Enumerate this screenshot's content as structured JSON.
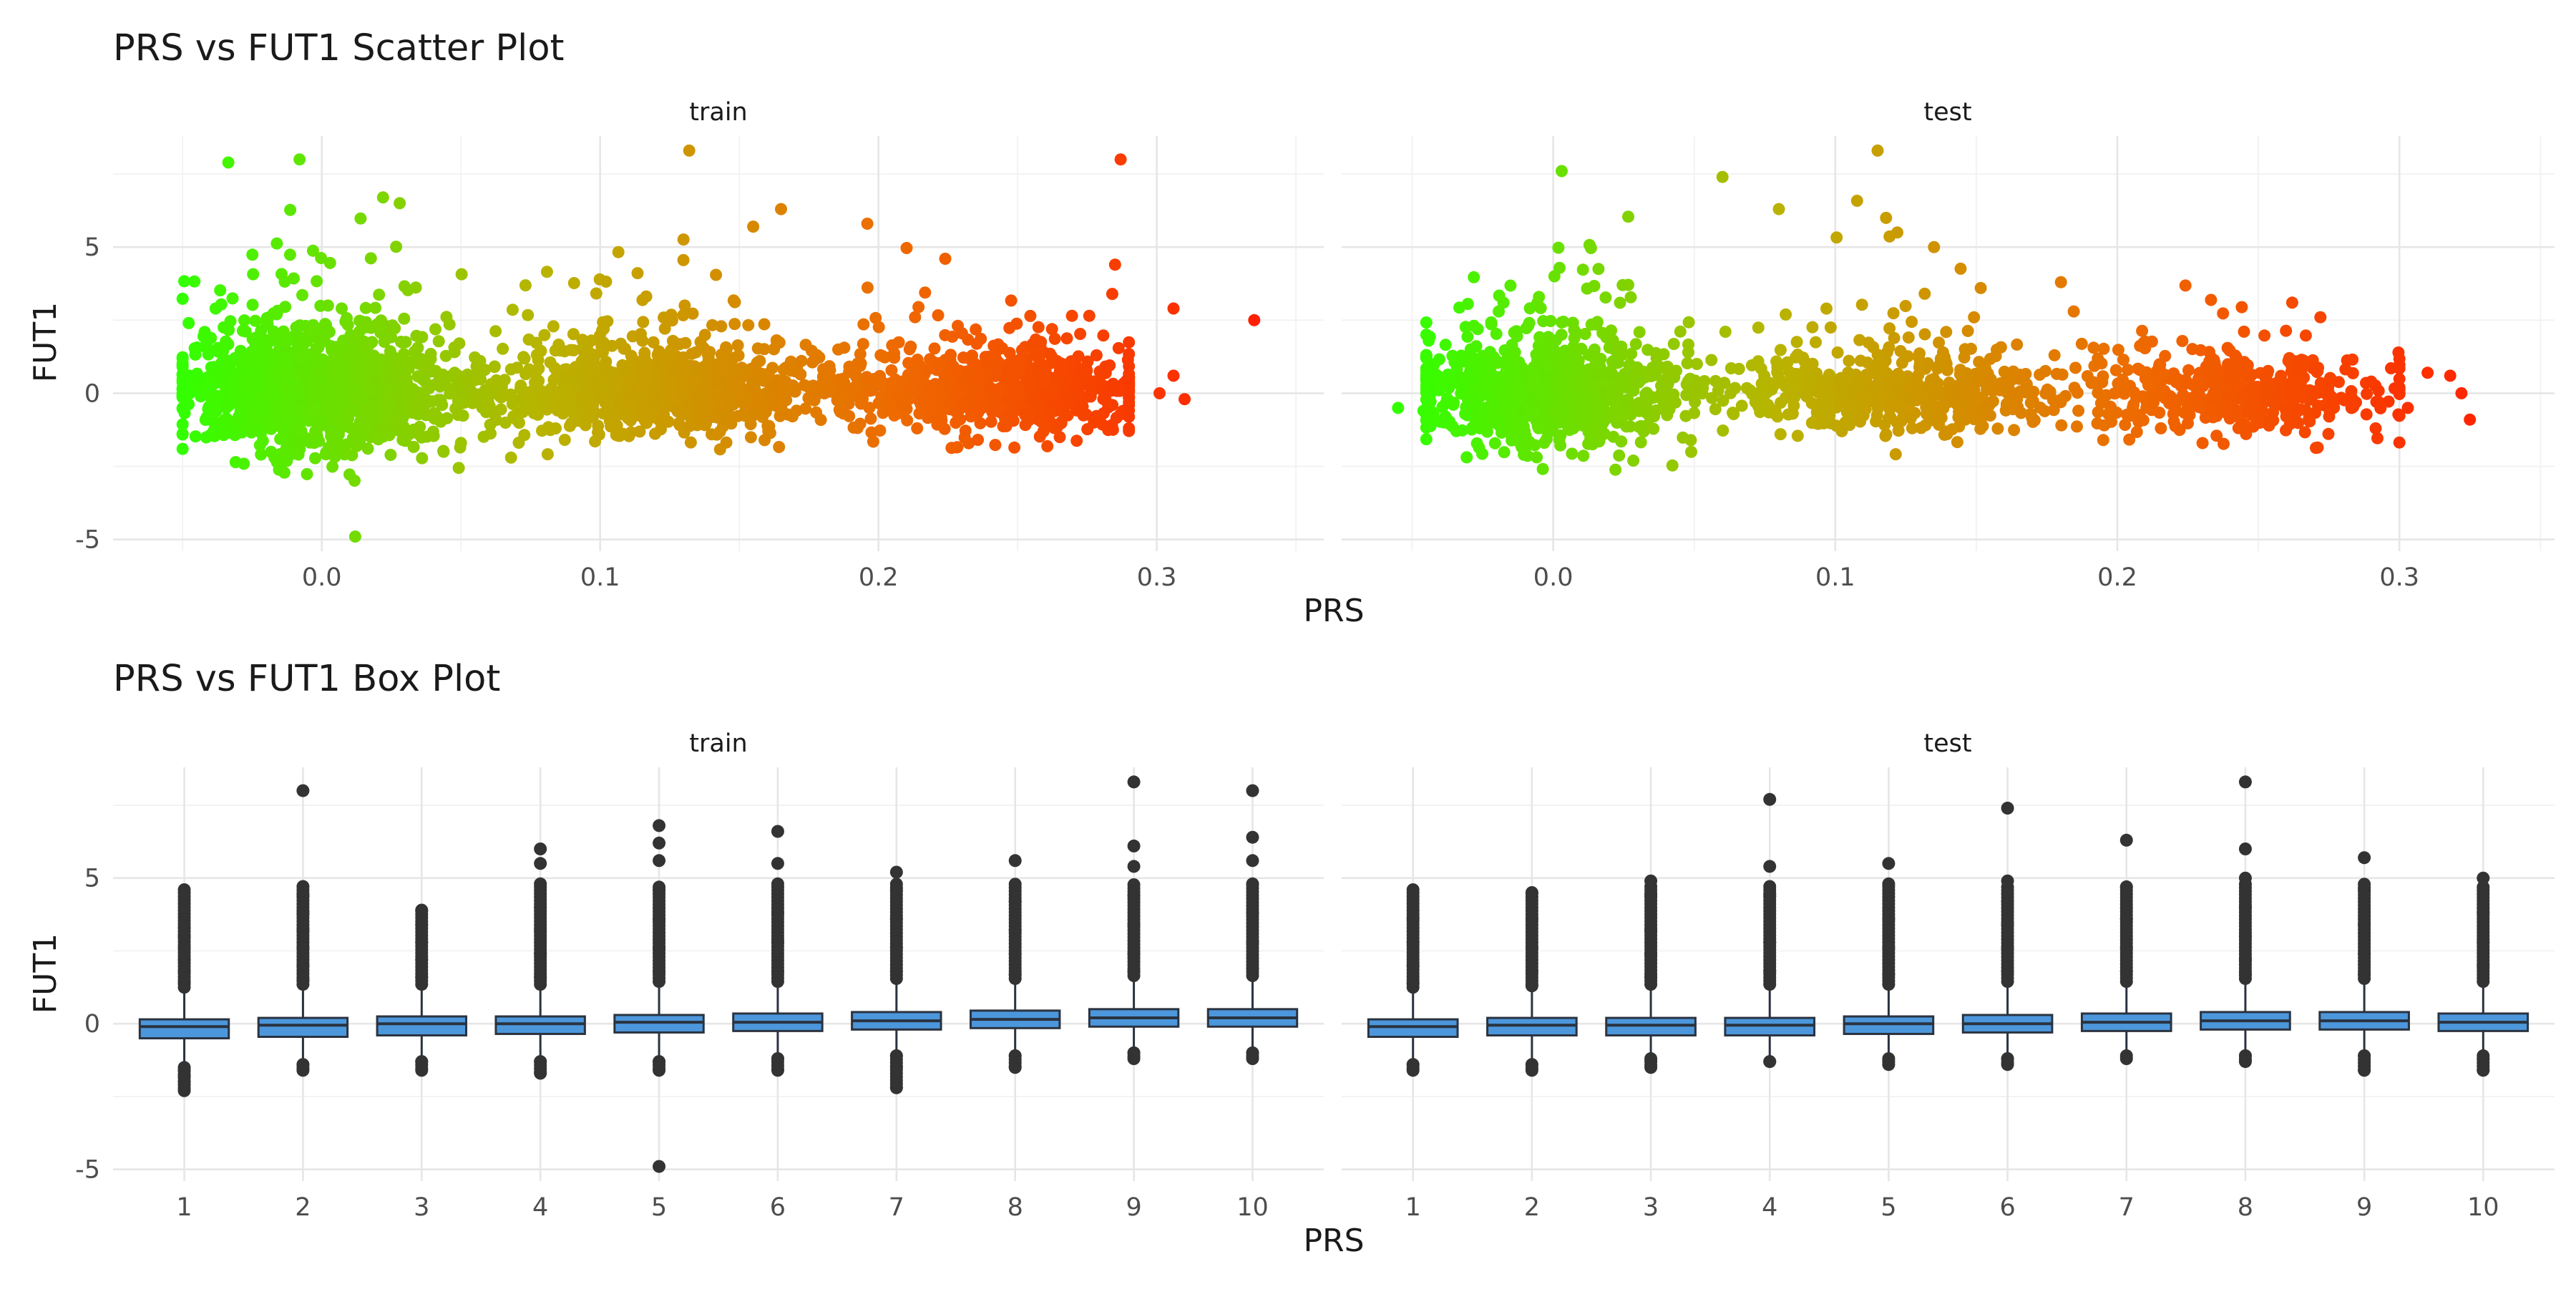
{
  "figure": {
    "scatter_title": "PRS vs FUT1 Scatter Plot",
    "box_title": "PRS vs FUT1 Box Plot"
  },
  "chart_data": [
    {
      "type": "scatter",
      "title": "PRS vs FUT1 Scatter Plot",
      "xlabel": "PRS",
      "ylabel": "FUT1",
      "color_gradient": [
        "#33ff00",
        "#b8b400",
        "#ee6a00",
        "#ff2000"
      ],
      "color_by": "PRS",
      "facets": [
        {
          "label": "train",
          "xlim": [
            -0.075,
            0.36
          ],
          "ylim": [
            -5.4,
            8.8
          ],
          "xticks": [
            0.0,
            0.1,
            0.2,
            0.3
          ],
          "xtick_labels": [
            "0.0",
            "0.1",
            "0.2",
            "0.3"
          ],
          "yticks": [
            -5,
            0,
            5
          ],
          "ytick_labels": [
            "-5",
            "0",
            "5"
          ],
          "bulk_points_estimated": {
            "x_range": [
              -0.05,
              0.29
            ],
            "center_y": 0.05,
            "spread_y": 0.8,
            "note_count_shown": 3000
          },
          "outlier_points": [
            {
              "x": -0.008,
              "y": 8.0
            },
            {
              "x": 0.132,
              "y": 8.3
            },
            {
              "x": 0.287,
              "y": 8.0
            },
            {
              "x": 0.012,
              "y": -4.9
            },
            {
              "x": 0.335,
              "y": 2.5
            },
            {
              "x": 0.306,
              "y": 2.9
            },
            {
              "x": 0.285,
              "y": 4.4
            },
            {
              "x": 0.284,
              "y": 3.4
            },
            {
              "x": 0.022,
              "y": 6.7
            },
            {
              "x": 0.028,
              "y": 6.5
            },
            {
              "x": 0.165,
              "y": 6.3
            },
            {
              "x": 0.196,
              "y": 5.8
            },
            {
              "x": 0.155,
              "y": 5.7
            },
            {
              "x": 0.068,
              "y": -2.2
            },
            {
              "x": -0.017,
              "y": -2.2
            },
            {
              "x": 0.05,
              "y": -1.7
            },
            {
              "x": 0.31,
              "y": -0.2
            },
            {
              "x": 0.301,
              "y": 0.0
            },
            {
              "x": 0.306,
              "y": 0.6
            },
            {
              "x": 0.224,
              "y": 4.6
            }
          ]
        },
        {
          "label": "test",
          "xlim": [
            -0.075,
            0.355
          ],
          "ylim": [
            -5.4,
            8.8
          ],
          "xticks": [
            0.0,
            0.1,
            0.2,
            0.3
          ],
          "xtick_labels": [
            "0.0",
            "0.1",
            "0.2",
            "0.3"
          ],
          "yticks": [
            -5,
            0,
            5
          ],
          "ytick_labels": [
            "-5",
            "0",
            "5"
          ],
          "bulk_points_estimated": {
            "x_range": [
              -0.045,
              0.3
            ],
            "center_y": 0.0,
            "spread_y": 0.75,
            "note_count_shown": 1800
          },
          "outlier_points": [
            {
              "x": 0.003,
              "y": 7.6
            },
            {
              "x": 0.06,
              "y": 7.4
            },
            {
              "x": 0.115,
              "y": 8.3
            },
            {
              "x": 0.08,
              "y": 6.3
            },
            {
              "x": 0.118,
              "y": 6.0
            },
            {
              "x": 0.122,
              "y": 5.5
            },
            {
              "x": 0.135,
              "y": 5.0
            },
            {
              "x": 0.18,
              "y": 3.8
            },
            {
              "x": 0.262,
              "y": 3.1
            },
            {
              "x": 0.272,
              "y": 2.6
            },
            {
              "x": -0.055,
              "y": -0.5
            },
            {
              "x": -0.046,
              "y": -0.6
            },
            {
              "x": 0.195,
              "y": -1.6
            },
            {
              "x": 0.325,
              "y": -0.9
            },
            {
              "x": 0.31,
              "y": 0.7
            },
            {
              "x": 0.318,
              "y": 0.6
            },
            {
              "x": 0.322,
              "y": 0.0
            },
            {
              "x": 0.303,
              "y": -0.5
            },
            {
              "x": 0.29,
              "y": 0.4
            },
            {
              "x": 0.283,
              "y": -0.5
            }
          ]
        }
      ]
    },
    {
      "type": "box",
      "title": "PRS vs FUT1 Box Plot",
      "xlabel": "PRS",
      "ylabel": "FUT1",
      "box_fill": "#4c97dc",
      "box_edge": "#2a3340",
      "categories": [
        "1",
        "2",
        "3",
        "4",
        "5",
        "6",
        "7",
        "8",
        "9",
        "10"
      ],
      "facets": [
        {
          "label": "train",
          "ylim": [
            -5.4,
            8.8
          ],
          "yticks": [
            -5,
            0,
            5
          ],
          "ytick_labels": [
            "-5",
            "0",
            "5"
          ],
          "boxes": [
            {
              "q1": -0.5,
              "median": -0.1,
              "q3": 0.15,
              "whisker_low": -1.4,
              "whisker_high": 1.1,
              "outliers": [
                4.6,
                3.3,
                3.0,
                2.6,
                2.2,
                1.8,
                1.4,
                -1.6,
                -1.8,
                -2.0,
                -2.3
              ]
            },
            {
              "q1": -0.45,
              "median": -0.05,
              "q3": 0.2,
              "whisker_low": -1.3,
              "whisker_high": 1.2,
              "outliers": [
                8.0,
                4.4,
                3.8,
                3.2,
                2.6,
                2.0,
                1.5,
                -1.4,
                -1.6
              ]
            },
            {
              "q1": -0.4,
              "median": 0.0,
              "q3": 0.25,
              "whisker_low": -1.2,
              "whisker_high": 1.2,
              "outliers": [
                3.9,
                3.4,
                2.8,
                2.2,
                1.6,
                -1.3,
                -1.6
              ]
            },
            {
              "q1": -0.35,
              "median": 0.0,
              "q3": 0.25,
              "whisker_low": -1.2,
              "whisker_high": 1.2,
              "outliers": [
                6.0,
                5.5,
                4.8,
                4.0,
                3.2,
                2.4,
                1.6,
                -1.3,
                -1.7
              ]
            },
            {
              "q1": -0.3,
              "median": 0.05,
              "q3": 0.3,
              "whisker_low": -1.2,
              "whisker_high": 1.3,
              "outliers": [
                6.8,
                6.2,
                5.6,
                4.6,
                3.6,
                2.6,
                1.8,
                -1.3,
                -1.6,
                -4.9
              ]
            },
            {
              "q1": -0.25,
              "median": 0.05,
              "q3": 0.35,
              "whisker_low": -1.1,
              "whisker_high": 1.3,
              "outliers": [
                6.6,
                5.5,
                4.8,
                3.8,
                2.8,
                1.8,
                -1.2,
                -1.6
              ]
            },
            {
              "q1": -0.2,
              "median": 0.1,
              "q3": 0.4,
              "whisker_low": -1.0,
              "whisker_high": 1.4,
              "outliers": [
                5.2,
                4.6,
                3.6,
                2.6,
                1.8,
                -1.1,
                -1.5,
                -2.2
              ]
            },
            {
              "q1": -0.15,
              "median": 0.15,
              "q3": 0.45,
              "whisker_low": -1.0,
              "whisker_high": 1.4,
              "outliers": [
                5.6,
                4.2,
                3.2,
                2.4,
                1.7,
                -1.1,
                -1.5
              ]
            },
            {
              "q1": -0.1,
              "median": 0.2,
              "q3": 0.5,
              "whisker_low": -0.9,
              "whisker_high": 1.5,
              "outliers": [
                8.3,
                6.1,
                5.4,
                4.4,
                3.4,
                2.4,
                1.8,
                -1.0,
                -1.2
              ]
            },
            {
              "q1": -0.1,
              "median": 0.2,
              "q3": 0.5,
              "whisker_low": -0.9,
              "whisker_high": 1.5,
              "outliers": [
                8.0,
                6.4,
                5.6,
                4.8,
                3.8,
                2.8,
                1.9,
                -1.0,
                -1.2
              ]
            }
          ]
        },
        {
          "label": "test",
          "ylim": [
            -5.4,
            8.8
          ],
          "yticks": [
            -5,
            0,
            5
          ],
          "ytick_labels": [
            "-5",
            "0",
            "5"
          ],
          "boxes": [
            {
              "q1": -0.45,
              "median": -0.1,
              "q3": 0.15,
              "whisker_low": -1.3,
              "whisker_high": 1.1,
              "outliers": [
                4.6,
                3.6,
                2.8,
                2.0,
                1.4,
                -1.4,
                -1.6
              ]
            },
            {
              "q1": -0.4,
              "median": -0.05,
              "q3": 0.2,
              "whisker_low": -1.3,
              "whisker_high": 1.2,
              "outliers": [
                4.5,
                3.6,
                2.6,
                1.8,
                1.3,
                -1.4,
                -1.6
              ]
            },
            {
              "q1": -0.4,
              "median": -0.05,
              "q3": 0.2,
              "whisker_low": -1.2,
              "whisker_high": 1.2,
              "outliers": [
                4.9,
                4.4,
                3.2,
                2.4,
                1.6,
                -1.2,
                -1.5
              ]
            },
            {
              "q1": -0.4,
              "median": -0.05,
              "q3": 0.2,
              "whisker_low": -1.2,
              "whisker_high": 1.2,
              "outliers": [
                7.7,
                5.4,
                4.4,
                2.8,
                1.8,
                -1.3
              ]
            },
            {
              "q1": -0.35,
              "median": 0.0,
              "q3": 0.25,
              "whisker_low": -1.2,
              "whisker_high": 1.2,
              "outliers": [
                5.5,
                4.8,
                3.6,
                2.6,
                1.7,
                -1.2,
                -1.4
              ]
            },
            {
              "q1": -0.3,
              "median": 0.0,
              "q3": 0.3,
              "whisker_low": -1.1,
              "whisker_high": 1.3,
              "outliers": [
                7.4,
                4.9,
                4.2,
                3.4,
                2.6,
                1.8,
                -1.2,
                -1.4
              ]
            },
            {
              "q1": -0.25,
              "median": 0.05,
              "q3": 0.35,
              "whisker_low": -1.0,
              "whisker_high": 1.3,
              "outliers": [
                6.3,
                4.7,
                3.6,
                2.6,
                1.8,
                -1.2
              ]
            },
            {
              "q1": -0.2,
              "median": 0.1,
              "q3": 0.4,
              "whisker_low": -1.0,
              "whisker_high": 1.4,
              "outliers": [
                8.3,
                6.0,
                5.0,
                4.0,
                3.0,
                2.2,
                1.7,
                -1.1,
                -1.3
              ]
            },
            {
              "q1": -0.2,
              "median": 0.1,
              "q3": 0.4,
              "whisker_low": -1.0,
              "whisker_high": 1.4,
              "outliers": [
                5.7,
                4.6,
                3.4,
                2.4,
                1.7,
                -1.1,
                -1.6
              ]
            },
            {
              "q1": -0.25,
              "median": 0.05,
              "q3": 0.35,
              "whisker_low": -1.0,
              "whisker_high": 1.3,
              "outliers": [
                5.0,
                3.8,
                2.8,
                2.0,
                -1.2,
                -1.6
              ]
            }
          ]
        }
      ]
    }
  ]
}
